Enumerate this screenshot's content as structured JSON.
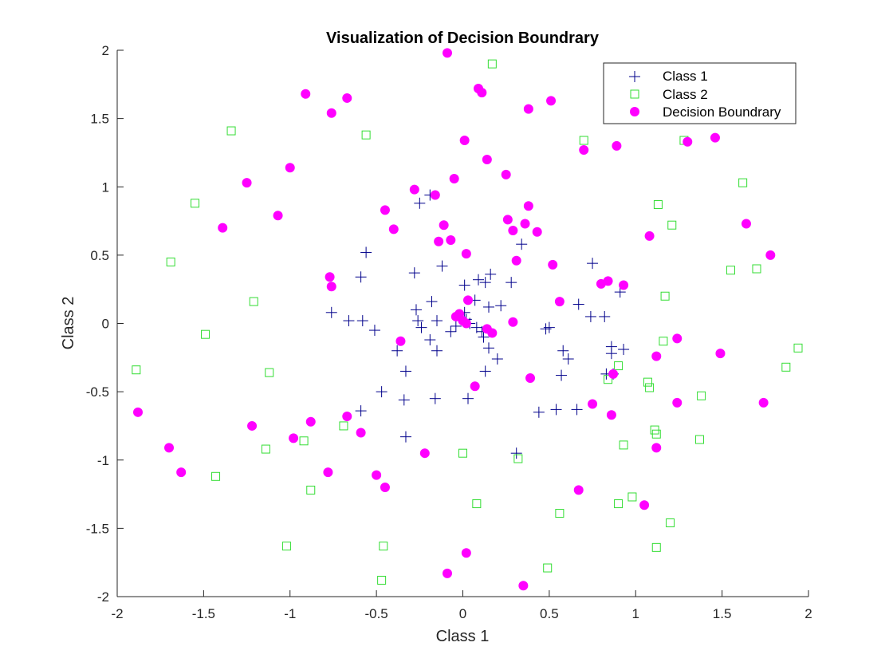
{
  "chart_data": {
    "type": "scatter",
    "title": "Visualization of Decision Boundrary",
    "xlabel": "Class 1",
    "ylabel": "Class 2",
    "xlim": [
      -2,
      2
    ],
    "ylim": [
      -2,
      2
    ],
    "xticks": [
      -2,
      -1.5,
      -1,
      -0.5,
      0,
      0.5,
      1,
      1.5,
      2
    ],
    "yticks": [
      -2,
      -1.5,
      -1,
      -0.5,
      0,
      0.5,
      1,
      1.5,
      2
    ],
    "grid": false,
    "legend_position": "top-right",
    "series": [
      {
        "name": "Class 1",
        "marker": "plus",
        "color": "#00008b",
        "points": [
          [
            -0.25,
            0.88
          ],
          [
            -0.19,
            0.94
          ],
          [
            -0.56,
            0.52
          ],
          [
            -0.59,
            0.34
          ],
          [
            -0.28,
            0.37
          ],
          [
            -0.12,
            0.42
          ],
          [
            0.01,
            0.28
          ],
          [
            0.09,
            0.32
          ],
          [
            0.13,
            0.3
          ],
          [
            0.16,
            0.36
          ],
          [
            0.28,
            0.3
          ],
          [
            0.34,
            0.58
          ],
          [
            0.75,
            0.44
          ],
          [
            0.91,
            0.23
          ],
          [
            -0.76,
            0.08
          ],
          [
            -0.66,
            0.02
          ],
          [
            -0.58,
            0.02
          ],
          [
            -0.51,
            -0.05
          ],
          [
            -0.38,
            -0.2
          ],
          [
            -0.26,
            0.02
          ],
          [
            -0.27,
            0.1
          ],
          [
            -0.24,
            -0.03
          ],
          [
            -0.18,
            0.16
          ],
          [
            -0.15,
            0.02
          ],
          [
            -0.19,
            -0.12
          ],
          [
            -0.15,
            -0.2
          ],
          [
            -0.07,
            -0.06
          ],
          [
            -0.04,
            -0.02
          ],
          [
            0.02,
            0.03
          ],
          [
            0.04,
            0.0
          ],
          [
            0.08,
            -0.03
          ],
          [
            0.11,
            -0.06
          ],
          [
            0.15,
            0.12
          ],
          [
            0.22,
            0.13
          ],
          [
            0.12,
            -0.1
          ],
          [
            0.15,
            -0.18
          ],
          [
            0.2,
            -0.26
          ],
          [
            0.07,
            0.17
          ],
          [
            -0.33,
            -0.35
          ],
          [
            -0.47,
            -0.5
          ],
          [
            -0.59,
            -0.64
          ],
          [
            -0.33,
            -0.83
          ],
          [
            -0.34,
            -0.56
          ],
          [
            -0.16,
            -0.55
          ],
          [
            0.03,
            -0.55
          ],
          [
            0.13,
            -0.35
          ],
          [
            0.31,
            -0.95
          ],
          [
            0.44,
            -0.65
          ],
          [
            0.54,
            -0.63
          ],
          [
            0.66,
            -0.63
          ],
          [
            0.57,
            -0.38
          ],
          [
            0.58,
            -0.2
          ],
          [
            0.61,
            -0.26
          ],
          [
            0.5,
            -0.03
          ],
          [
            0.67,
            0.14
          ],
          [
            0.74,
            0.05
          ],
          [
            0.82,
            0.05
          ],
          [
            0.86,
            -0.17
          ],
          [
            0.93,
            -0.19
          ],
          [
            0.87,
            -0.37
          ],
          [
            0.83,
            -0.37
          ],
          [
            0.86,
            -0.22
          ],
          [
            0.48,
            -0.04
          ],
          [
            -0.03,
            0.06
          ],
          [
            0.01,
            0.08
          ]
        ]
      },
      {
        "name": "Class 2",
        "marker": "square",
        "color": "#33dd33",
        "points": [
          [
            0.17,
            1.9
          ],
          [
            -1.34,
            1.41
          ],
          [
            -0.56,
            1.38
          ],
          [
            0.7,
            1.34
          ],
          [
            1.28,
            1.34
          ],
          [
            -1.55,
            0.88
          ],
          [
            1.62,
            1.03
          ],
          [
            1.13,
            0.87
          ],
          [
            1.21,
            0.72
          ],
          [
            -1.69,
            0.45
          ],
          [
            1.55,
            0.39
          ],
          [
            1.7,
            0.4
          ],
          [
            -1.21,
            0.16
          ],
          [
            1.17,
            0.2
          ],
          [
            -1.49,
            -0.08
          ],
          [
            1.16,
            -0.13
          ],
          [
            1.94,
            -0.18
          ],
          [
            -1.89,
            -0.34
          ],
          [
            -1.12,
            -0.36
          ],
          [
            0.9,
            -0.31
          ],
          [
            1.87,
            -0.32
          ],
          [
            1.07,
            -0.43
          ],
          [
            1.08,
            -0.47
          ],
          [
            1.38,
            -0.53
          ],
          [
            0.84,
            -0.41
          ],
          [
            -0.69,
            -0.75
          ],
          [
            -0.92,
            -0.86
          ],
          [
            -1.14,
            -0.92
          ],
          [
            1.11,
            -0.78
          ],
          [
            1.12,
            -0.81
          ],
          [
            1.37,
            -0.85
          ],
          [
            0.93,
            -0.89
          ],
          [
            0.0,
            -0.95
          ],
          [
            0.32,
            -0.99
          ],
          [
            -0.88,
            -1.22
          ],
          [
            -1.43,
            -1.12
          ],
          [
            0.08,
            -1.32
          ],
          [
            0.56,
            -1.39
          ],
          [
            0.9,
            -1.32
          ],
          [
            0.98,
            -1.27
          ],
          [
            1.2,
            -1.46
          ],
          [
            -1.02,
            -1.63
          ],
          [
            -0.46,
            -1.63
          ],
          [
            1.12,
            -1.64
          ],
          [
            -0.47,
            -1.88
          ],
          [
            0.49,
            -1.79
          ]
        ]
      },
      {
        "name": "Decision Boundrary",
        "marker": "dot",
        "color": "#ff00ff",
        "points": [
          [
            -0.09,
            1.98
          ],
          [
            0.09,
            1.72
          ],
          [
            0.11,
            1.69
          ],
          [
            -0.91,
            1.68
          ],
          [
            -0.67,
            1.65
          ],
          [
            -0.76,
            1.54
          ],
          [
            0.38,
            1.57
          ],
          [
            0.51,
            1.63
          ],
          [
            0.01,
            1.34
          ],
          [
            0.89,
            1.3
          ],
          [
            0.7,
            1.27
          ],
          [
            1.3,
            1.33
          ],
          [
            1.46,
            1.36
          ],
          [
            0.14,
            1.2
          ],
          [
            -1.0,
            1.14
          ],
          [
            0.25,
            1.09
          ],
          [
            -0.05,
            1.06
          ],
          [
            -1.25,
            1.03
          ],
          [
            -0.28,
            0.98
          ],
          [
            -0.16,
            0.94
          ],
          [
            0.38,
            0.86
          ],
          [
            -0.45,
            0.83
          ],
          [
            -1.07,
            0.79
          ],
          [
            0.26,
            0.76
          ],
          [
            0.36,
            0.73
          ],
          [
            1.64,
            0.73
          ],
          [
            -0.11,
            0.72
          ],
          [
            -1.39,
            0.7
          ],
          [
            -0.4,
            0.69
          ],
          [
            0.29,
            0.68
          ],
          [
            0.43,
            0.67
          ],
          [
            1.08,
            0.64
          ],
          [
            -0.14,
            0.6
          ],
          [
            -0.07,
            0.61
          ],
          [
            0.02,
            0.51
          ],
          [
            1.78,
            0.5
          ],
          [
            0.31,
            0.46
          ],
          [
            0.52,
            0.43
          ],
          [
            -0.77,
            0.34
          ],
          [
            -0.76,
            0.27
          ],
          [
            0.8,
            0.29
          ],
          [
            0.84,
            0.31
          ],
          [
            0.93,
            0.28
          ],
          [
            0.03,
            0.17
          ],
          [
            0.56,
            0.16
          ],
          [
            -0.04,
            0.05
          ],
          [
            -0.02,
            0.07
          ],
          [
            0.0,
            0.02
          ],
          [
            0.02,
            0.0
          ],
          [
            0.14,
            -0.04
          ],
          [
            0.17,
            -0.07
          ],
          [
            0.29,
            0.01
          ],
          [
            -0.36,
            -0.13
          ],
          [
            0.39,
            -0.4
          ],
          [
            1.12,
            -0.24
          ],
          [
            1.24,
            -0.11
          ],
          [
            1.49,
            -0.22
          ],
          [
            0.87,
            -0.37
          ],
          [
            0.07,
            -0.46
          ],
          [
            0.75,
            -0.59
          ],
          [
            0.86,
            -0.67
          ],
          [
            1.24,
            -0.58
          ],
          [
            1.74,
            -0.58
          ],
          [
            -0.67,
            -0.68
          ],
          [
            -0.88,
            -0.72
          ],
          [
            -1.22,
            -0.75
          ],
          [
            -0.59,
            -0.8
          ],
          [
            -0.98,
            -0.84
          ],
          [
            -1.88,
            -0.65
          ],
          [
            -1.7,
            -0.91
          ],
          [
            1.12,
            -0.91
          ],
          [
            -0.22,
            -0.95
          ],
          [
            -1.63,
            -1.09
          ],
          [
            -0.78,
            -1.09
          ],
          [
            -0.5,
            -1.11
          ],
          [
            -0.45,
            -1.2
          ],
          [
            0.67,
            -1.22
          ],
          [
            1.05,
            -1.33
          ],
          [
            0.02,
            -1.68
          ],
          [
            -0.09,
            -1.83
          ],
          [
            0.35,
            -1.92
          ]
        ]
      }
    ]
  }
}
